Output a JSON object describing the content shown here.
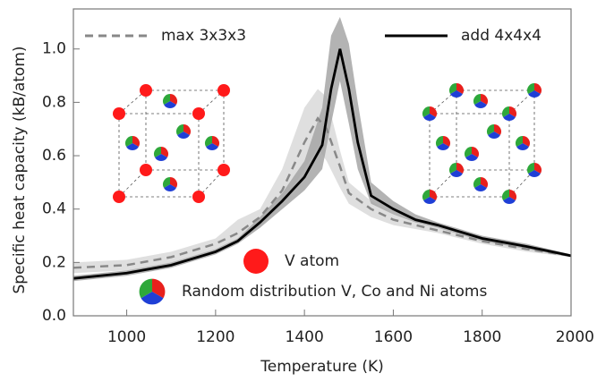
{
  "chart_data": {
    "type": "line",
    "xlabel": "Temperature (K)",
    "ylabel": "Specific heat capacity (kB/atom)",
    "xlim": [
      880,
      2000
    ],
    "ylim": [
      0,
      1.15
    ],
    "xticks": [
      1000,
      1200,
      1400,
      1600,
      1800,
      2000
    ],
    "yticks": [
      {
        "value": 0,
        "label": "0.0"
      },
      0.2,
      0.4,
      0.6,
      0.8,
      {
        "value": 1,
        "label": "1.0"
      }
    ],
    "annotations": [
      "V atom",
      "Random distribution V, Co and Ni atoms"
    ],
    "series": [
      {
        "name": "max 3x3x3",
        "color": "#888888",
        "band_color": "#d9d9d9",
        "dashed": true,
        "x": [
          880,
          1000,
          1100,
          1200,
          1250,
          1300,
          1350,
          1400,
          1430,
          1450,
          1480,
          1500,
          1550,
          1600,
          1700,
          1800,
          1900,
          2000
        ],
        "values": [
          0.18,
          0.19,
          0.22,
          0.27,
          0.31,
          0.37,
          0.47,
          0.65,
          0.74,
          0.7,
          0.56,
          0.46,
          0.4,
          0.36,
          0.32,
          0.28,
          0.25,
          0.225
        ],
        "upper": [
          0.2,
          0.21,
          0.24,
          0.29,
          0.36,
          0.4,
          0.55,
          0.78,
          0.85,
          0.82,
          0.62,
          0.5,
          0.43,
          0.38,
          0.33,
          0.29,
          0.26,
          0.23
        ],
        "lower": [
          0.16,
          0.17,
          0.2,
          0.25,
          0.28,
          0.33,
          0.42,
          0.55,
          0.63,
          0.58,
          0.48,
          0.42,
          0.37,
          0.34,
          0.31,
          0.27,
          0.24,
          0.22
        ]
      },
      {
        "name": "add 4x4x4",
        "color": "#000000",
        "band_color": "#a6a6a6",
        "dashed": false,
        "x": [
          880,
          1000,
          1100,
          1200,
          1250,
          1300,
          1350,
          1400,
          1440,
          1460,
          1480,
          1500,
          1520,
          1550,
          1600,
          1650,
          1700,
          1800,
          1900,
          2000
        ],
        "values": [
          0.14,
          0.16,
          0.19,
          0.24,
          0.28,
          0.35,
          0.43,
          0.52,
          0.64,
          0.85,
          1.0,
          0.85,
          0.65,
          0.45,
          0.4,
          0.36,
          0.34,
          0.29,
          0.26,
          0.225
        ],
        "upper": [
          0.15,
          0.17,
          0.2,
          0.25,
          0.29,
          0.37,
          0.46,
          0.58,
          0.78,
          1.05,
          1.12,
          1.02,
          0.8,
          0.5,
          0.43,
          0.38,
          0.35,
          0.3,
          0.27,
          0.23
        ],
        "lower": [
          0.13,
          0.15,
          0.18,
          0.23,
          0.27,
          0.33,
          0.4,
          0.47,
          0.55,
          0.72,
          0.88,
          0.72,
          0.55,
          0.42,
          0.38,
          0.35,
          0.33,
          0.28,
          0.25,
          0.22
        ]
      }
    ]
  }
}
